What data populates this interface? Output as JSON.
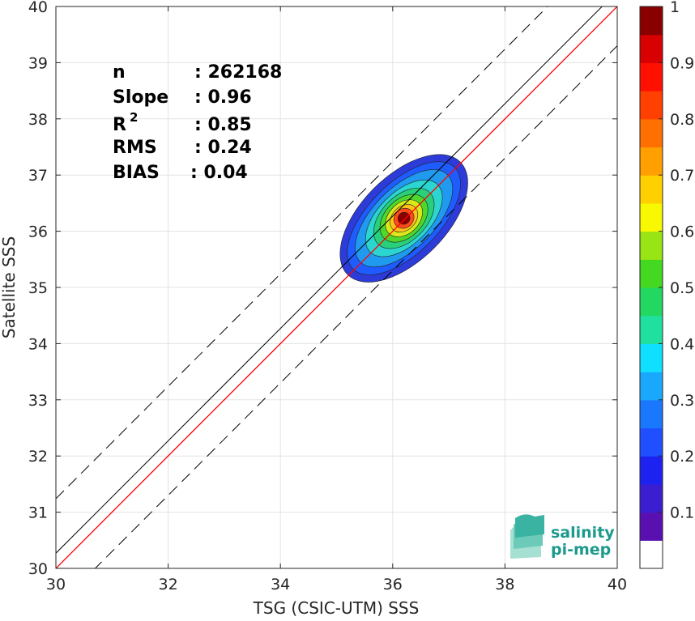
{
  "chart_data": {
    "type": "density-scatter",
    "xlabel": "TSG (CSIC-UTM) SSS",
    "ylabel": "Satellite SSS",
    "xlim": [
      30,
      40
    ],
    "ylim": [
      30,
      40
    ],
    "xticks": [
      30,
      32,
      34,
      36,
      38,
      40
    ],
    "yticks": [
      30,
      31,
      32,
      33,
      34,
      35,
      36,
      37,
      38,
      39,
      40
    ],
    "grid": true,
    "stats": [
      {
        "label": "n",
        "value": ": 262168"
      },
      {
        "label": "Slope",
        "value": ": 0.96"
      },
      {
        "label": "R",
        "sup": "2",
        "value": ": 0.85"
      },
      {
        "label": "RMS",
        "value": ": 0.24"
      },
      {
        "label": "BIAS",
        "value": ": 0.04"
      }
    ],
    "lines": {
      "identity": {
        "color": "#000000",
        "slope": 1,
        "intercept": 0
      },
      "fit": {
        "color": "#ff0000",
        "points": [
          [
            30,
            30
          ],
          [
            40,
            40
          ]
        ]
      },
      "bounds": {
        "color": "#000000",
        "offset": 0.72
      }
    },
    "density_center": [
      36.2,
      36.23
    ],
    "contours": [
      {
        "level": 0.05,
        "hw": 0.18,
        "hl": 1.42,
        "color": "#2d3bd8"
      },
      {
        "level": 0.15,
        "hw": 0.15,
        "hl": 1.28,
        "color": "#1f5cff"
      },
      {
        "level": 0.25,
        "hw": 0.13,
        "hl": 1.1,
        "color": "#1f9aef"
      },
      {
        "level": 0.35,
        "hw": 0.11,
        "hl": 0.85,
        "color": "#2bd6d0"
      },
      {
        "level": 0.45,
        "hw": 0.095,
        "hl": 0.65,
        "color": "#28d07a"
      },
      {
        "level": 0.55,
        "hw": 0.08,
        "hl": 0.5,
        "color": "#4fd82b"
      },
      {
        "level": 0.65,
        "hw": 0.065,
        "hl": 0.38,
        "color": "#d8ea1a"
      },
      {
        "level": 0.75,
        "hw": 0.05,
        "hl": 0.28,
        "color": "#ffc21a"
      },
      {
        "level": 0.85,
        "hw": 0.04,
        "hl": 0.19,
        "color": "#ff4a1a"
      },
      {
        "level": 0.95,
        "hw": 0.025,
        "hl": 0.11,
        "color": "#8a0000"
      }
    ],
    "colorbar": {
      "ticks": [
        "0.1",
        "0.2",
        "0.3",
        "0.4",
        "0.5",
        "0.6",
        "0.7",
        "0.8",
        "0.9",
        "1"
      ],
      "tick_values": [
        0.1,
        0.2,
        0.3,
        0.4,
        0.5,
        0.6,
        0.7,
        0.8,
        0.9,
        1.0
      ],
      "segments": [
        "#ffffff",
        "#5a10b0",
        "#3a1ed0",
        "#1e22f0",
        "#1f4fff",
        "#1a78ff",
        "#1aa8ff",
        "#10e0ff",
        "#20e0a0",
        "#22d860",
        "#44d820",
        "#98e414",
        "#f8f800",
        "#ffd000",
        "#ffa000",
        "#ff7000",
        "#ff4000",
        "#ff1000",
        "#d80000",
        "#8a0000"
      ],
      "range": [
        0,
        1
      ]
    }
  },
  "logo": {
    "line1": "salinity",
    "line2": "pi-mep",
    "colors": [
      "#1c9a8c",
      "#3ab3a2",
      "#6ccbb8",
      "#a6e0d2"
    ]
  }
}
